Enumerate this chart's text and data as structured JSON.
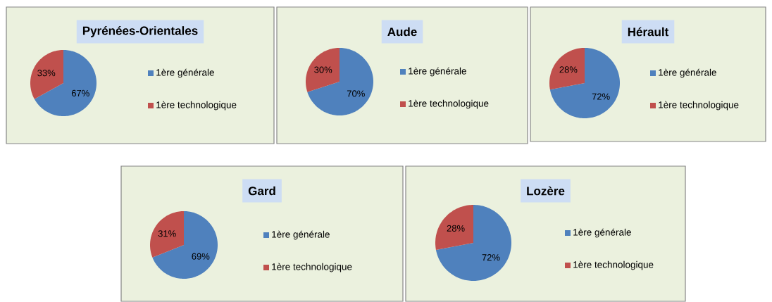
{
  "chart_data": [
    {
      "type": "pie",
      "title": "Pyrénées-Orientales",
      "categories": [
        "1ère générale",
        "1ère technologique"
      ],
      "values": [
        67,
        33
      ],
      "value_labels": [
        "67%",
        "33%"
      ],
      "colors": [
        "#4f81bd",
        "#c0504d"
      ],
      "legend": "right"
    },
    {
      "type": "pie",
      "title": "Aude",
      "categories": [
        "1ère générale",
        "1ère technologique"
      ],
      "values": [
        70,
        30
      ],
      "value_labels": [
        "70%",
        "30%"
      ],
      "colors": [
        "#4f81bd",
        "#c0504d"
      ],
      "legend": "right"
    },
    {
      "type": "pie",
      "title": "Hérault",
      "categories": [
        "1ère générale",
        "1ère technologique"
      ],
      "values": [
        72,
        28
      ],
      "value_labels": [
        "72%",
        "28%"
      ],
      "colors": [
        "#4f81bd",
        "#c0504d"
      ],
      "legend": "right"
    },
    {
      "type": "pie",
      "title": "Gard",
      "categories": [
        "1ère générale",
        "1ère technologique"
      ],
      "values": [
        69,
        31
      ],
      "value_labels": [
        "69%",
        "31%"
      ],
      "colors": [
        "#4f81bd",
        "#c0504d"
      ],
      "legend": "right"
    },
    {
      "type": "pie",
      "title": "Lozère",
      "categories": [
        "1ère générale",
        "1ère technologique"
      ],
      "values": [
        72,
        28
      ],
      "value_labels": [
        "72%",
        "28%"
      ],
      "colors": [
        "#4f81bd",
        "#c0504d"
      ],
      "legend": "right"
    }
  ]
}
